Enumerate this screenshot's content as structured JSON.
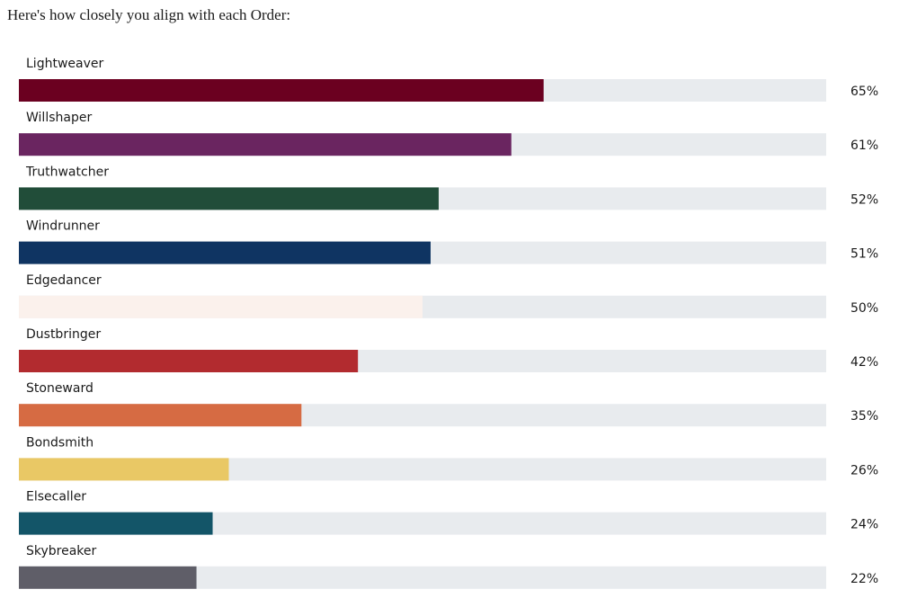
{
  "chart_data": {
    "type": "bar",
    "orientation": "horizontal",
    "title": "Here's how closely you align with each Order:",
    "categories": [
      "Lightweaver",
      "Willshaper",
      "Truthwatcher",
      "Windrunner",
      "Edgedancer",
      "Dustbringer",
      "Stoneward",
      "Bondsmith",
      "Elsecaller",
      "Skybreaker"
    ],
    "values": [
      65,
      61,
      52,
      51,
      50,
      42,
      35,
      26,
      24,
      22
    ],
    "value_labels": [
      "65%",
      "61%",
      "52%",
      "51%",
      "50%",
      "42%",
      "35%",
      "26%",
      "24%",
      "22%"
    ],
    "colors": [
      "#6b0020",
      "#6a2560",
      "#214d39",
      "#0f3462",
      "#fbf1ec",
      "#b22b2f",
      "#d66b43",
      "#e9c865",
      "#135568",
      "#5f5e68"
    ],
    "track_color": "#e8ebee",
    "xlim": [
      0,
      100
    ]
  }
}
